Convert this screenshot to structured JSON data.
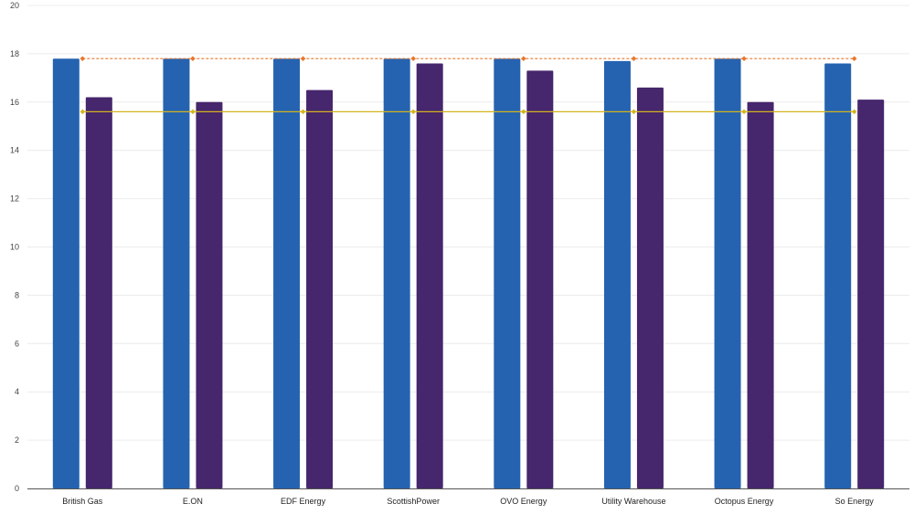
{
  "chart_data": {
    "type": "bar",
    "title": "",
    "xlabel": "",
    "ylabel": "",
    "categories": [
      "British Gas",
      "E.ON",
      "EDF Energy",
      "ScottishPower",
      "OVO Energy",
      "Utility Warehouse",
      "Octopus Energy",
      "So Energy"
    ],
    "series": [
      {
        "type": "bar",
        "color": "#2563b0",
        "values": [
          17.8,
          17.8,
          17.8,
          17.8,
          17.8,
          17.7,
          17.8,
          17.6
        ]
      },
      {
        "type": "bar",
        "color": "#46266c",
        "values": [
          16.2,
          16.0,
          16.5,
          17.6,
          17.3,
          16.6,
          16.0,
          16.1
        ]
      },
      {
        "type": "line",
        "style": "dashed",
        "color": "#e8772e",
        "values": [
          17.8,
          17.8,
          17.8,
          17.8,
          17.8,
          17.8,
          17.8,
          17.8
        ]
      },
      {
        "type": "line",
        "style": "solid",
        "color": "#d4b41e",
        "values": [
          15.6,
          15.6,
          15.6,
          15.6,
          15.6,
          15.6,
          15.6,
          15.6
        ]
      }
    ],
    "ylim": [
      0,
      20
    ],
    "yticks": [
      0,
      2,
      4,
      6,
      8,
      10,
      12,
      14,
      16,
      18,
      20
    ],
    "grid": true,
    "legend": "none"
  }
}
